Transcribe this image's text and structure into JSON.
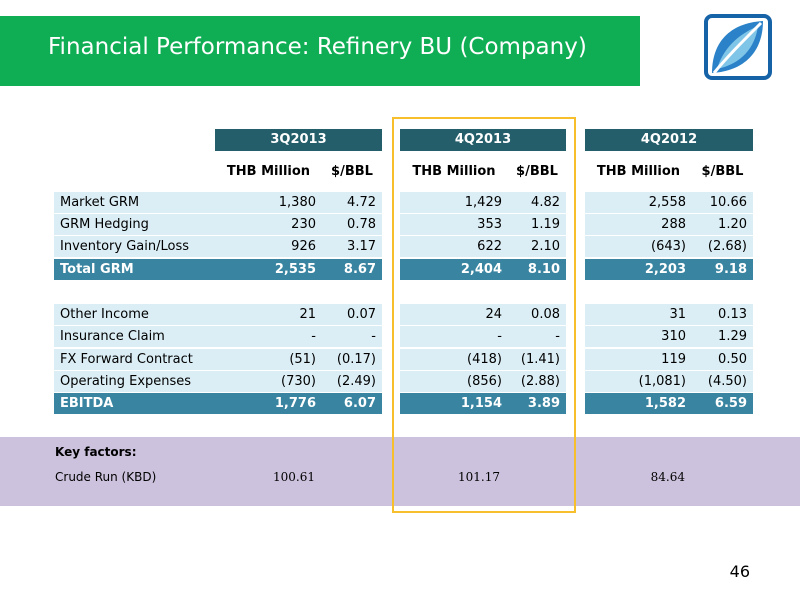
{
  "title": "Financial Performance: Refinery BU (Company)",
  "page_number": "46",
  "colors": {
    "title_bar": "#0fae55",
    "header": "#245e6a",
    "row_light": "#dbeef5",
    "total_row": "#3984a0",
    "key_band": "#ccc2dd",
    "highlight": "#f7bf2c"
  },
  "logo": {
    "icon": "leaf-logo-icon"
  },
  "table": {
    "periods": [
      "3Q2013",
      "4Q2013",
      "4Q2012"
    ],
    "subheaders": [
      "THB Million",
      "$/BBL"
    ],
    "rows": [
      {
        "label": "Market GRM",
        "values": [
          "1,380",
          "4.72",
          "1,429",
          "4.82",
          "2,558",
          "10.66"
        ]
      },
      {
        "label": "GRM Hedging",
        "values": [
          "230",
          "0.78",
          "353",
          "1.19",
          "288",
          "1.20"
        ]
      },
      {
        "label": "Inventory Gain/Loss",
        "values": [
          "926",
          "3.17",
          "622",
          "2.10",
          "(643)",
          "(2.68)"
        ]
      },
      {
        "label": "Total GRM",
        "values": [
          "2,535",
          "8.67",
          "2,404",
          "8.10",
          "2,203",
          "9.18"
        ]
      },
      {
        "label": "Other Income",
        "values": [
          "21",
          "0.07",
          "24",
          "0.08",
          "31",
          "0.13"
        ]
      },
      {
        "label": "Insurance Claim",
        "values": [
          "-",
          "-",
          "-",
          "-",
          "310",
          "1.29"
        ]
      },
      {
        "label": "FX Forward Contract",
        "values": [
          "(51)",
          "(0.17)",
          "(418)",
          "(1.41)",
          "119",
          "0.50"
        ]
      },
      {
        "label": "Operating Expenses",
        "values": [
          "(730)",
          "(2.49)",
          "(856)",
          "(2.88)",
          "(1,081)",
          "(4.50)"
        ]
      },
      {
        "label": "EBITDA",
        "values": [
          "1,776",
          "6.07",
          "1,154",
          "3.89",
          "1,582",
          "6.59"
        ]
      }
    ]
  },
  "key_factors": {
    "title": "Key factors:",
    "label": "Crude Run (KBD)",
    "values": [
      "100.61",
      "101.17",
      "84.64"
    ]
  }
}
